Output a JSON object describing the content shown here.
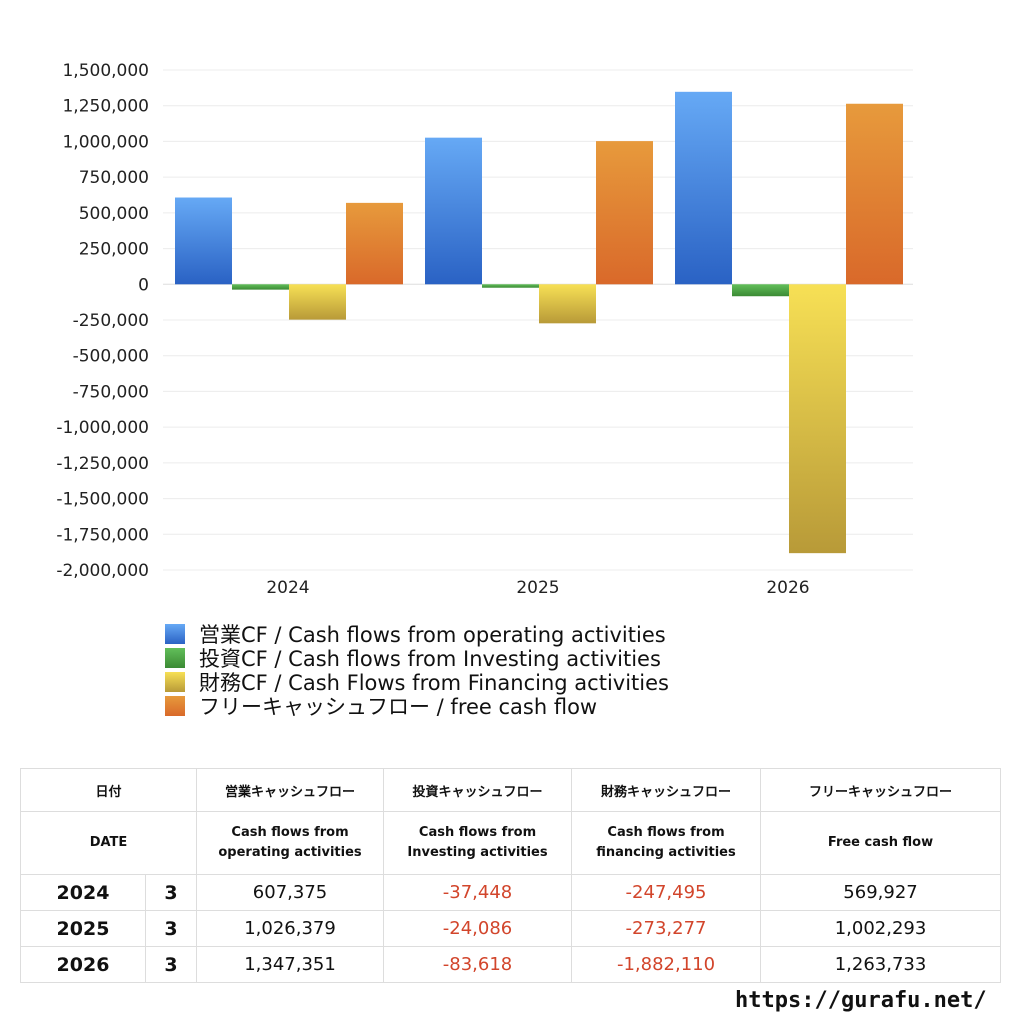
{
  "chart_data": {
    "type": "bar",
    "categories": [
      "2024",
      "2025",
      "2026"
    ],
    "series": [
      {
        "name": "営業CF / Cash flows from operating activities",
        "values": [
          607375,
          1026379,
          1347351
        ],
        "color": "#3a7fdc"
      },
      {
        "name": "投資CF / Cash flows from Investing activities",
        "values": [
          -37448,
          -24086,
          -83618
        ],
        "color": "#4aa14a"
      },
      {
        "name": "財務CF / Cash Flows from Financing activities",
        "values": [
          -247495,
          -273277,
          -1882110
        ],
        "color": "#e6c940"
      },
      {
        "name": "フリーキャッシュフロー / free cash flow",
        "values": [
          569927,
          1002293,
          1263733
        ],
        "color": "#e0873a"
      }
    ],
    "ylim": [
      -2000000,
      1500000
    ],
    "yticks": [
      "1,500,000",
      "1,250,000",
      "1,000,000",
      "750,000",
      "500,000",
      "250,000",
      "0",
      "-250,000",
      "-500,000",
      "-750,000",
      "-1,000,000",
      "-1,250,000",
      "-1,500,000",
      "-1,750,000",
      "-2,000,000"
    ],
    "ytick_values": [
      1500000,
      1250000,
      1000000,
      750000,
      500000,
      250000,
      0,
      -250000,
      -500000,
      -750000,
      -1000000,
      -1250000,
      -1500000,
      -1750000,
      -2000000
    ],
    "grid": true,
    "legend_position": "bottom-left"
  },
  "table": {
    "header_jp": {
      "date": "日付",
      "operating": "営業キャッシュフロー",
      "investing": "投資キャッシュフロー",
      "financing": "財務キャッシュフロー",
      "free": "フリーキャッシュフロー"
    },
    "header_en": {
      "date": "DATE",
      "operating": [
        "Cash flows from",
        "operating activities"
      ],
      "investing": [
        "Cash flows from",
        "Investing activities"
      ],
      "financing": [
        "Cash flows from",
        "financing activities"
      ],
      "free": "Free cash flow"
    },
    "rows": [
      {
        "year": "2024",
        "month": "3",
        "operating": "607,375",
        "investing": "-37,448",
        "financing": "-247,495",
        "free": "569,927"
      },
      {
        "year": "2025",
        "month": "3",
        "operating": "1,026,379",
        "investing": "-24,086",
        "financing": "-273,277",
        "free": "1,002,293"
      },
      {
        "year": "2026",
        "month": "3",
        "operating": "1,347,351",
        "investing": "-83,618",
        "financing": "-1,882,110",
        "free": "1,263,733"
      }
    ]
  },
  "footer": {
    "url": "https://gurafu.net/"
  }
}
